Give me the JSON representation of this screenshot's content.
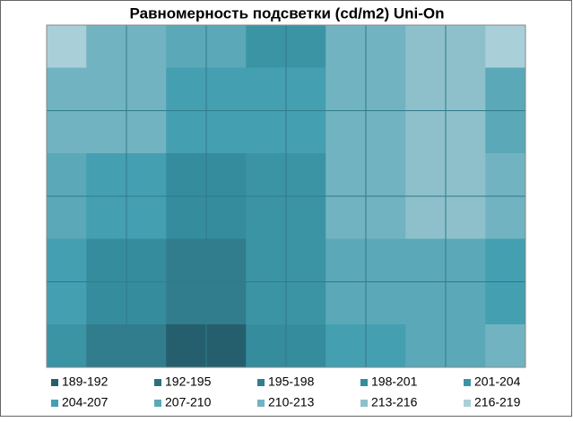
{
  "chart_data": {
    "type": "contour",
    "title": "Равномерность подсветки (cd/m2) Uni-On",
    "z": [
      [
        216,
        212,
        207,
        203,
        210,
        213,
        218
      ],
      [
        211,
        210,
        205,
        204,
        212,
        214,
        207
      ],
      [
        208,
        206,
        200,
        202,
        212,
        213,
        210
      ],
      [
        205,
        200,
        196,
        202,
        207,
        208,
        206
      ],
      [
        203,
        197,
        190,
        199,
        205,
        208,
        212
      ]
    ],
    "bands": [
      {
        "label": "189-192",
        "range": [
          189,
          192
        ],
        "color": "#255f6e"
      },
      {
        "label": "192-195",
        "range": [
          192,
          195
        ],
        "color": "#2c7080"
      },
      {
        "label": "195-198",
        "range": [
          195,
          198
        ],
        "color": "#317d8d"
      },
      {
        "label": "198-201",
        "range": [
          198,
          201
        ],
        "color": "#358c9c"
      },
      {
        "label": "201-204",
        "range": [
          201,
          204
        ],
        "color": "#3b94a4"
      },
      {
        "label": "204-207",
        "range": [
          204,
          207
        ],
        "color": "#449fb1"
      },
      {
        "label": "207-210",
        "range": [
          207,
          210
        ],
        "color": "#5ba8b8"
      },
      {
        "label": "210-213",
        "range": [
          210,
          213
        ],
        "color": "#72b3c2"
      },
      {
        "label": "213-216",
        "range": [
          213,
          216
        ],
        "color": "#8ec0cb"
      },
      {
        "label": "216-219",
        "range": [
          216,
          219
        ],
        "color": "#a9d0d8"
      }
    ],
    "grid": true
  }
}
